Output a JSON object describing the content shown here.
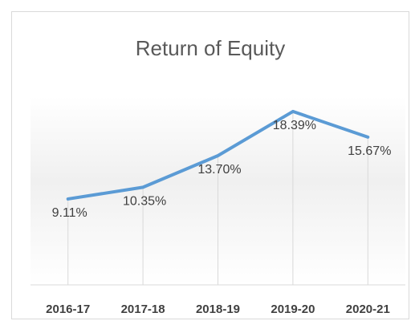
{
  "chart_data": {
    "type": "line",
    "title": "Return of Equity",
    "categories": [
      "2016-17",
      "2017-18",
      "2018-19",
      "2019-20",
      "2020-21"
    ],
    "values": [
      9.11,
      10.35,
      13.7,
      18.39,
      15.67
    ],
    "value_labels": [
      "9.11%",
      "10.35%",
      "13.70%",
      "18.39%",
      "15.67%"
    ],
    "color": "#5b9bd5",
    "ylim": [
      0,
      20
    ],
    "drop_lines": true
  }
}
